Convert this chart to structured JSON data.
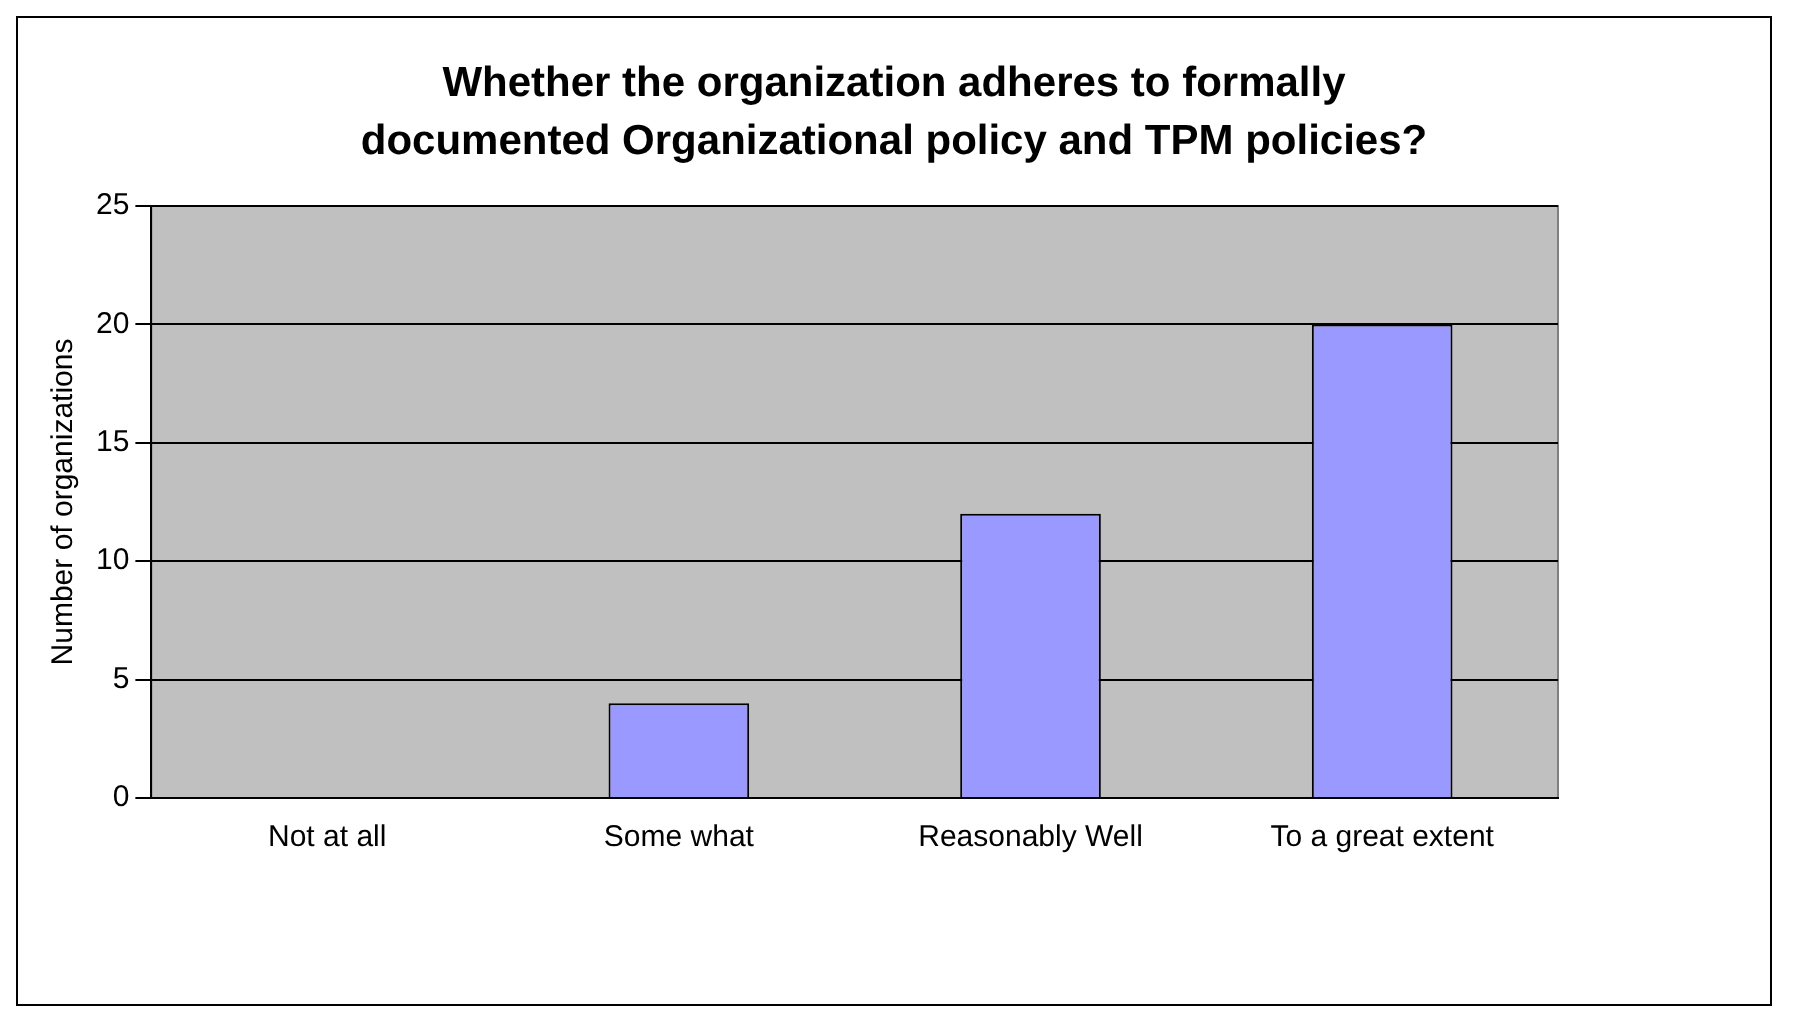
{
  "chart_data": {
    "type": "bar",
    "title": "Whether the organization adheres to formally documented Organizational policy and TPM policies?",
    "ylabel": "Number of organizations",
    "categories": [
      "Not at all",
      "Some what",
      "Reasonably Well",
      "To a great extent"
    ],
    "values": [
      0,
      4,
      12,
      20
    ],
    "color": "#9999ff",
    "ylim": [
      0,
      25
    ],
    "yticks": [
      0,
      5,
      10,
      15,
      20,
      25
    ],
    "grid": "y",
    "legend": false
  }
}
